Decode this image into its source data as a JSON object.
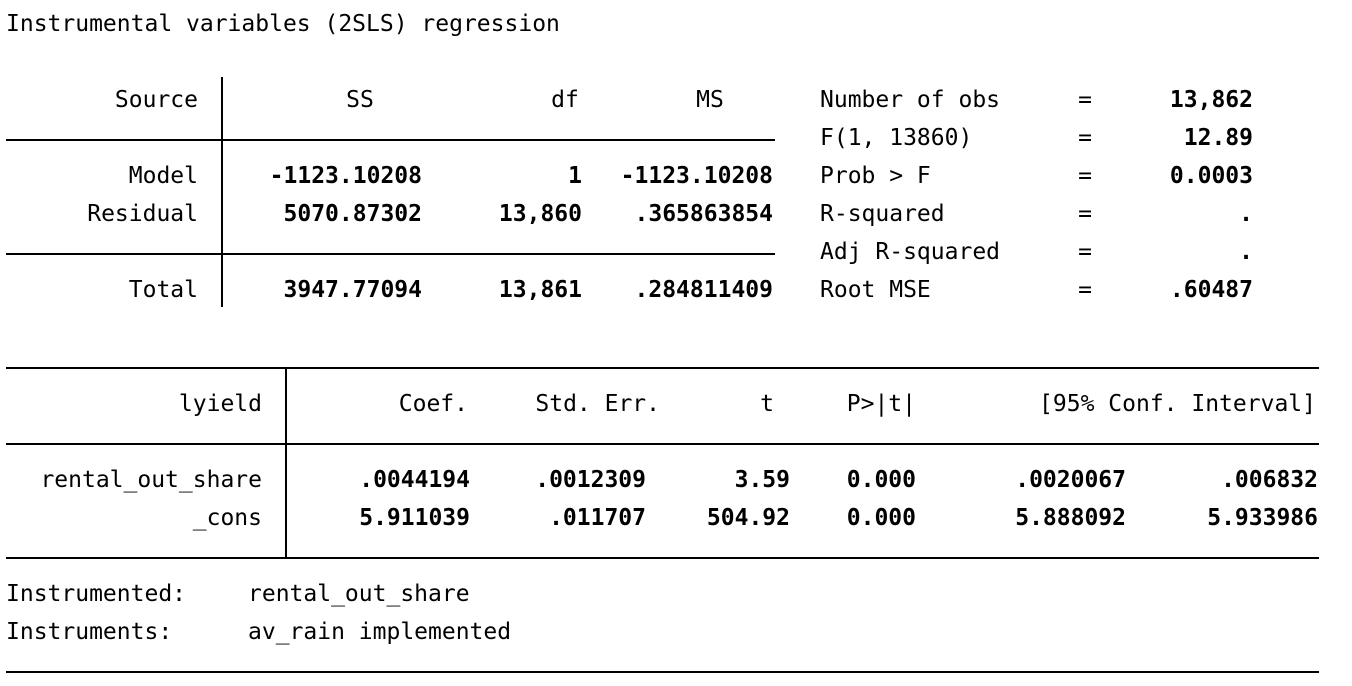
{
  "title": "Instrumental variables (2SLS) regression",
  "anova": {
    "headers": {
      "source": "Source",
      "ss": "SS",
      "df": "df",
      "ms": "MS"
    },
    "rows": [
      {
        "source": "Model",
        "ss": "-1123.10208",
        "df": "1",
        "ms": "-1123.10208"
      },
      {
        "source": "Residual",
        "ss": "5070.87302",
        "df": "13,860",
        "ms": ".365863854"
      }
    ],
    "total": {
      "source": "Total",
      "ss": "3947.77094",
      "df": "13,861",
      "ms": ".284811409"
    }
  },
  "stats": [
    {
      "label": "Number of obs",
      "eq": "=",
      "value": "13,862"
    },
    {
      "label": "F(1, 13860)",
      "eq": "=",
      "value": "12.89"
    },
    {
      "label": "Prob > F",
      "eq": "=",
      "value": "0.0003"
    },
    {
      "label": "R-squared",
      "eq": "=",
      "value": "."
    },
    {
      "label": "Adj R-squared",
      "eq": "=",
      "value": "."
    },
    {
      "label": "Root MSE",
      "eq": "=",
      "value": ".60487"
    }
  ],
  "coef": {
    "headers": {
      "depvar": "lyield",
      "coef": "Coef.",
      "se": "Std. Err.",
      "t": "t",
      "p": "P>|t|",
      "ci": "[95% Conf. Interval]"
    },
    "rows": [
      {
        "var": "rental_out_share",
        "coef": ".0044194",
        "se": ".0012309",
        "t": "3.59",
        "p": "0.000",
        "lo": ".0020067",
        "hi": ".006832"
      },
      {
        "var": "_cons",
        "coef": "5.911039",
        "se": ".011707",
        "t": "504.92",
        "p": "0.000",
        "lo": "5.888092",
        "hi": "5.933986"
      }
    ]
  },
  "footer": {
    "instrumented_label": "Instrumented:",
    "instrumented_value": "rental_out_share",
    "instruments_label": "Instruments:",
    "instruments_value": "av_rain implemented"
  }
}
